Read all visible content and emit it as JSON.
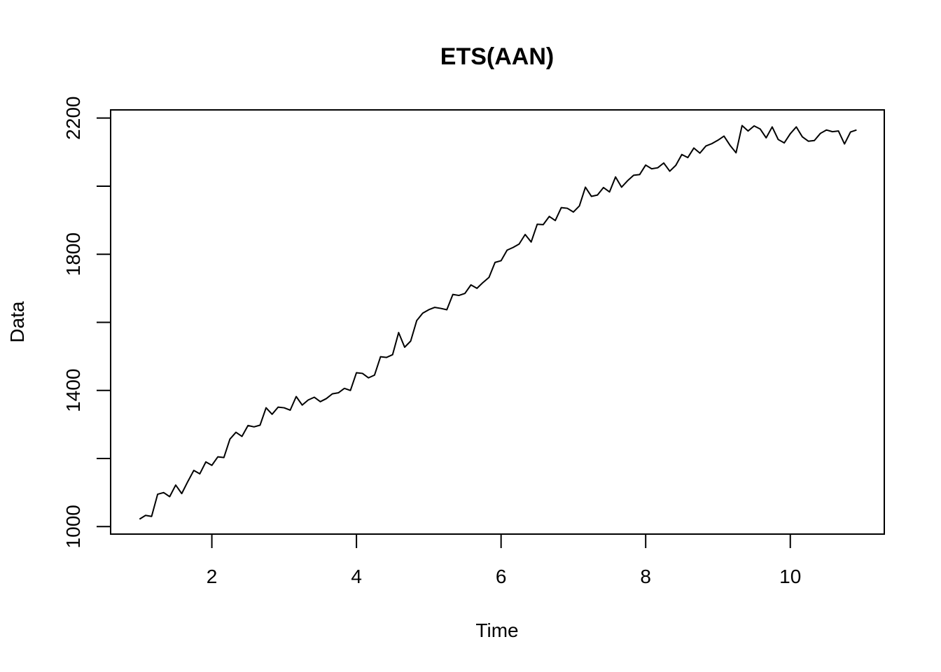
{
  "chart_data": {
    "type": "line",
    "title": "ETS(AAN)",
    "xlabel": "Time",
    "ylabel": "Data",
    "xlim": [
      0.6,
      11.3
    ],
    "ylim": [
      978,
      2224
    ],
    "x_ticks": [
      2,
      4,
      6,
      8,
      10
    ],
    "y_ticks": [
      1000,
      1200,
      1400,
      1600,
      1800,
      2000,
      2200
    ],
    "y_tick_labels": [
      "1000",
      "",
      "1400",
      "",
      "1800",
      "",
      "2200"
    ],
    "x_tick_labels": [
      "2",
      "4",
      "6",
      "8",
      "10"
    ],
    "grid": false,
    "legend": "none",
    "series": [
      {
        "x_start": 1.0,
        "x_step": 0.08333,
        "values": [
          1022,
          1033,
          1030,
          1095,
          1100,
          1088,
          1122,
          1097,
          1132,
          1165,
          1155,
          1190,
          1180,
          1205,
          1203,
          1257,
          1277,
          1265,
          1297,
          1293,
          1298,
          1349,
          1330,
          1351,
          1349,
          1342,
          1382,
          1357,
          1372,
          1380,
          1367,
          1376,
          1390,
          1393,
          1406,
          1400,
          1452,
          1450,
          1437,
          1445,
          1499,
          1497,
          1505,
          1570,
          1527,
          1545,
          1605,
          1627,
          1637,
          1644,
          1641,
          1637,
          1682,
          1679,
          1685,
          1710,
          1700,
          1717,
          1732,
          1776,
          1781,
          1812,
          1820,
          1830,
          1858,
          1836,
          1888,
          1887,
          1911,
          1899,
          1937,
          1935,
          1924,
          1942,
          1997,
          1970,
          1974,
          1996,
          1983,
          2027,
          1997,
          2016,
          2032,
          2034,
          2062,
          2051,
          2054,
          2068,
          2044,
          2061,
          2093,
          2084,
          2112,
          2097,
          2118,
          2125,
          2135,
          2147,
          2120,
          2098,
          2178,
          2162,
          2177,
          2168,
          2142,
          2174,
          2137,
          2127,
          2154,
          2174,
          2145,
          2132,
          2134,
          2155,
          2165,
          2160,
          2162,
          2124,
          2159,
          2165
        ]
      }
    ]
  }
}
